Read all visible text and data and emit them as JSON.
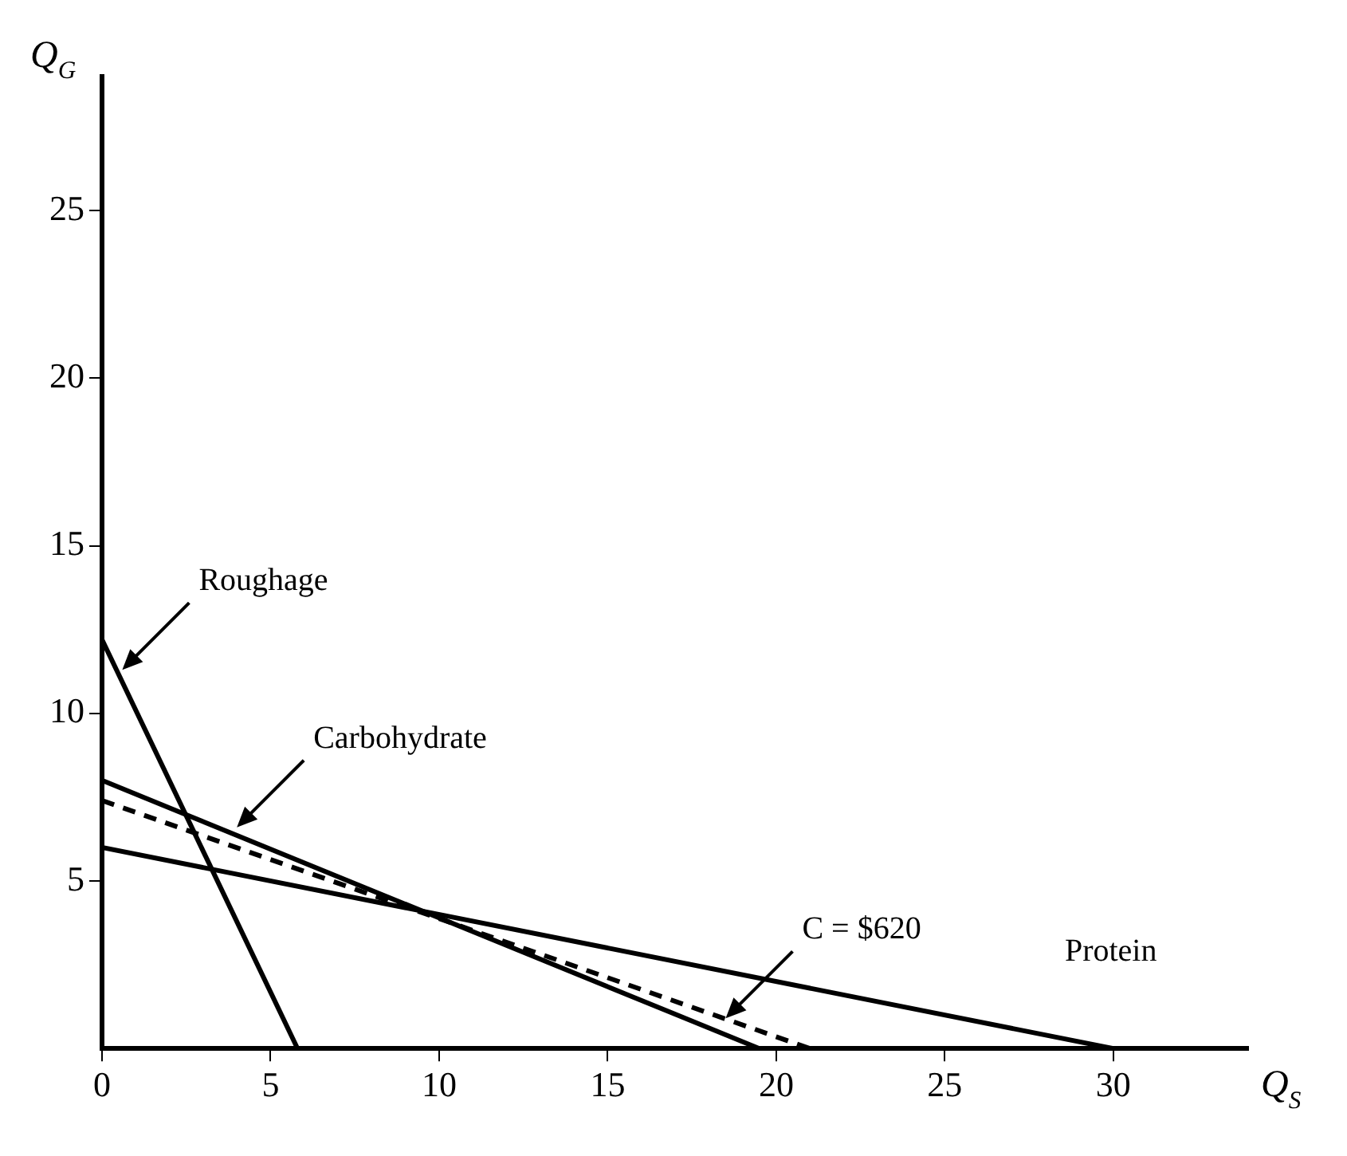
{
  "chart_data": {
    "type": "line",
    "xlabel": "Q$_{S}$",
    "ylabel": "Q$_{G}$",
    "xlim": [
      0,
      34
    ],
    "ylim": [
      0,
      29
    ],
    "xticks": [
      0,
      5,
      10,
      15,
      20,
      25,
      30
    ],
    "yticks": [
      5,
      10,
      15,
      20,
      25
    ],
    "grid": false,
    "legend": false,
    "marker": "none",
    "series": [
      {
        "color": "#000000",
        "x": [
          0,
          5.8
        ],
        "values": [
          12.2,
          0
        ],
        "line_style": "solid"
      },
      {
        "color": "#000000",
        "x": [
          0,
          19.5
        ],
        "values": [
          8,
          0
        ],
        "line_style": "solid"
      },
      {
        "color": "#000000",
        "x": [
          0,
          30
        ],
        "values": [
          6,
          0
        ],
        "line_style": "solid"
      },
      {
        "color": "#000000",
        "x": [
          0,
          21
        ],
        "values": [
          7.4,
          0
        ],
        "line_style": "dashed"
      }
    ],
    "annotations": [
      {
        "text": "Roughage",
        "x": 0.6,
        "y": 11.3
      },
      {
        "text": "Carbohydrate",
        "x": 4,
        "y": 6.6
      },
      {
        "text": "C = $620",
        "x": 18.5,
        "y": 0.9
      },
      "Protein"
    ]
  }
}
